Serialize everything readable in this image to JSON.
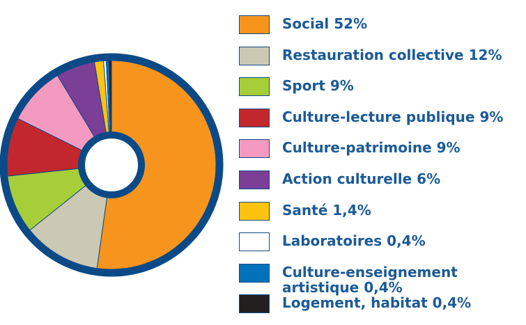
{
  "chart_data": {
    "type": "donut",
    "categories": [
      "Social",
      "Restauration collective",
      "Sport",
      "Culture-lecture publique",
      "Culture-patrimoine",
      "Action culturelle",
      "Santé",
      "Laboratoires",
      "Culture-enseignement artistique",
      "Logement, habitat"
    ],
    "values": [
      52,
      12,
      9,
      9,
      9,
      6,
      1.4,
      0.4,
      0.4,
      0.4
    ],
    "value_labels": [
      "52%",
      "12%",
      "9%",
      "9%",
      "9%",
      "6%",
      "1,4%",
      "0,4%",
      "0,4%",
      "0,4%"
    ],
    "colors": [
      "#f7941d",
      "#cbc8b4",
      "#a6ce39",
      "#c1272d",
      "#f49ac1",
      "#7b3f98",
      "#ffc20e",
      "#ffffff",
      "#0072bc",
      "#231f20"
    ],
    "legend": "right"
  }
}
